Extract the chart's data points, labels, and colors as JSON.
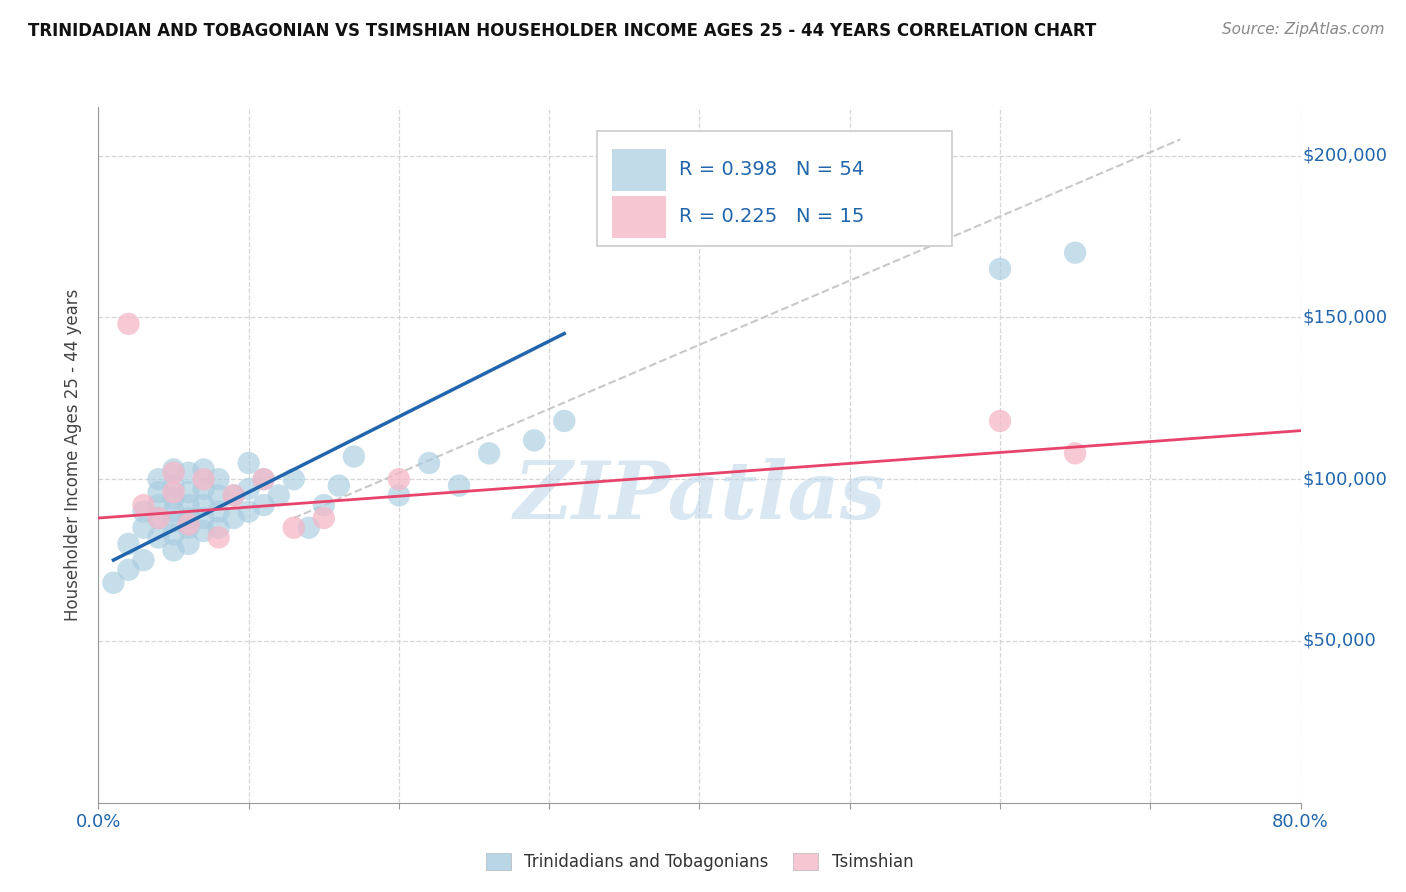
{
  "title": "TRINIDADIAN AND TOBAGONIAN VS TSIMSHIAN HOUSEHOLDER INCOME AGES 25 - 44 YEARS CORRELATION CHART",
  "source": "Source: ZipAtlas.com",
  "ylabel": "Householder Income Ages 25 - 44 years",
  "xlim": [
    0.0,
    0.8
  ],
  "ylim": [
    0,
    215000
  ],
  "xticks": [
    0.0,
    0.1,
    0.2,
    0.3,
    0.4,
    0.5,
    0.6,
    0.7,
    0.8
  ],
  "ytick_positions": [
    50000,
    100000,
    150000,
    200000
  ],
  "ytick_labels": [
    "$50,000",
    "$100,000",
    "$150,000",
    "$200,000"
  ],
  "blue_R": "0.398",
  "blue_N": "54",
  "pink_R": "0.225",
  "pink_N": "15",
  "blue_color": "#a8cce0",
  "pink_color": "#f4b8c8",
  "blue_line_color": "#2166ac",
  "pink_line_color": "#e8436a",
  "watermark": "ZIPatlas",
  "blue_scatter_x": [
    0.01,
    0.02,
    0.02,
    0.03,
    0.03,
    0.03,
    0.04,
    0.04,
    0.04,
    0.04,
    0.04,
    0.05,
    0.05,
    0.05,
    0.05,
    0.05,
    0.05,
    0.05,
    0.06,
    0.06,
    0.06,
    0.06,
    0.06,
    0.06,
    0.07,
    0.07,
    0.07,
    0.07,
    0.07,
    0.08,
    0.08,
    0.08,
    0.08,
    0.09,
    0.09,
    0.1,
    0.1,
    0.1,
    0.11,
    0.11,
    0.12,
    0.13,
    0.14,
    0.15,
    0.16,
    0.17,
    0.2,
    0.22,
    0.24,
    0.26,
    0.29,
    0.31,
    0.6,
    0.65
  ],
  "blue_scatter_y": [
    68000,
    72000,
    80000,
    75000,
    85000,
    90000,
    82000,
    88000,
    92000,
    96000,
    100000,
    78000,
    83000,
    87000,
    90000,
    94000,
    98000,
    103000,
    80000,
    85000,
    88000,
    92000,
    96000,
    102000,
    84000,
    88000,
    92000,
    97000,
    103000,
    85000,
    90000,
    95000,
    100000,
    88000,
    95000,
    90000,
    97000,
    105000,
    92000,
    100000,
    95000,
    100000,
    85000,
    92000,
    98000,
    107000,
    95000,
    105000,
    98000,
    108000,
    112000,
    118000,
    165000,
    170000
  ],
  "pink_scatter_x": [
    0.02,
    0.03,
    0.04,
    0.05,
    0.05,
    0.06,
    0.07,
    0.08,
    0.09,
    0.11,
    0.13,
    0.15,
    0.2,
    0.6,
    0.65
  ],
  "pink_scatter_y": [
    148000,
    92000,
    88000,
    96000,
    102000,
    86000,
    100000,
    82000,
    95000,
    100000,
    85000,
    88000,
    100000,
    118000,
    108000
  ],
  "blue_trend_x0": 0.01,
  "blue_trend_x1": 0.31,
  "blue_trend_y0": 75000,
  "blue_trend_y1": 145000,
  "pink_trend_x0": 0.0,
  "pink_trend_x1": 0.8,
  "pink_trend_y0": 88000,
  "pink_trend_y1": 115000,
  "gray_trend_x0": 0.13,
  "gray_trend_x1": 0.72,
  "gray_trend_y0": 88000,
  "gray_trend_y1": 205000
}
